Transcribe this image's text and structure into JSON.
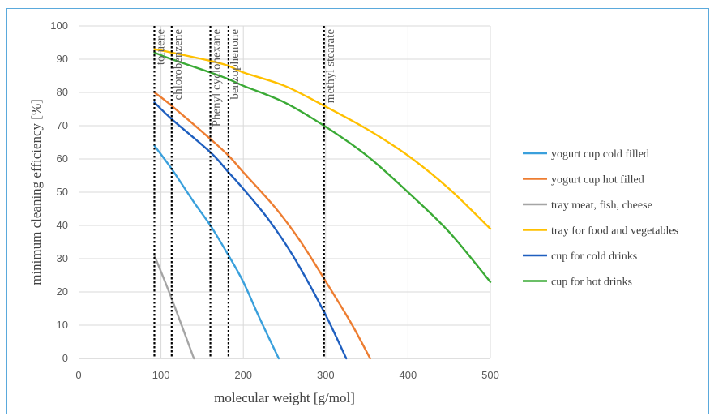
{
  "chart_data": {
    "type": "line",
    "xlabel": "molecular weight [g/mol]",
    "ylabel": "minimum cleaning efficiency [%]",
    "xlim": [
      0,
      500
    ],
    "ylim": [
      0,
      100
    ],
    "xticks": [
      0,
      100,
      200,
      300,
      400,
      500
    ],
    "yticks": [
      0,
      10,
      20,
      30,
      40,
      50,
      60,
      70,
      80,
      90,
      100
    ],
    "grid": true,
    "legend_position": "right",
    "markers": [
      {
        "name": "toluene",
        "x": 92
      },
      {
        "name": "chlorobenzene",
        "x": 113
      },
      {
        "name": "Phenyl cyclohexane",
        "x": 160
      },
      {
        "name": "benzophenone",
        "x": 182
      },
      {
        "name": "methyl stearate",
        "x": 298
      }
    ],
    "series": [
      {
        "name": "yogurt cup cold filled",
        "color": "#3aa0dc",
        "x": [
          92,
          113,
          140,
          160,
          182,
          200,
          220,
          243
        ],
        "y": [
          64,
          57,
          47,
          40,
          31,
          23,
          12,
          0
        ]
      },
      {
        "name": "yogurt cup hot filled",
        "color": "#ed7d31",
        "x": [
          92,
          113,
          160,
          182,
          200,
          240,
          270,
          298,
          330,
          354
        ],
        "y": [
          80,
          76,
          66,
          61,
          56,
          45,
          35,
          24,
          11,
          0
        ]
      },
      {
        "name": "tray meat, fish, cheese",
        "color": "#a5a5a5",
        "x": [
          92,
          113,
          140
        ],
        "y": [
          31,
          18,
          0
        ]
      },
      {
        "name": "tray for food and vegetables",
        "color": "#ffc000",
        "x": [
          92,
          113,
          160,
          182,
          200,
          250,
          298,
          350,
          400,
          450,
          500
        ],
        "y": [
          93,
          92,
          89.5,
          88,
          86,
          82,
          76,
          69,
          61,
          51,
          39
        ]
      },
      {
        "name": "cup for cold drinks",
        "color": "#1f5fbf",
        "x": [
          92,
          113,
          160,
          182,
          200,
          230,
          260,
          298,
          325
        ],
        "y": [
          77,
          72,
          62,
          56,
          51,
          42,
          31,
          14,
          0
        ]
      },
      {
        "name": "cup for hot drinks",
        "color": "#3aaa35",
        "x": [
          92,
          113,
          160,
          182,
          200,
          250,
          298,
          350,
          400,
          450,
          500
        ],
        "y": [
          92,
          90,
          86,
          84,
          82,
          77,
          70,
          61,
          50,
          38,
          23
        ]
      }
    ]
  }
}
